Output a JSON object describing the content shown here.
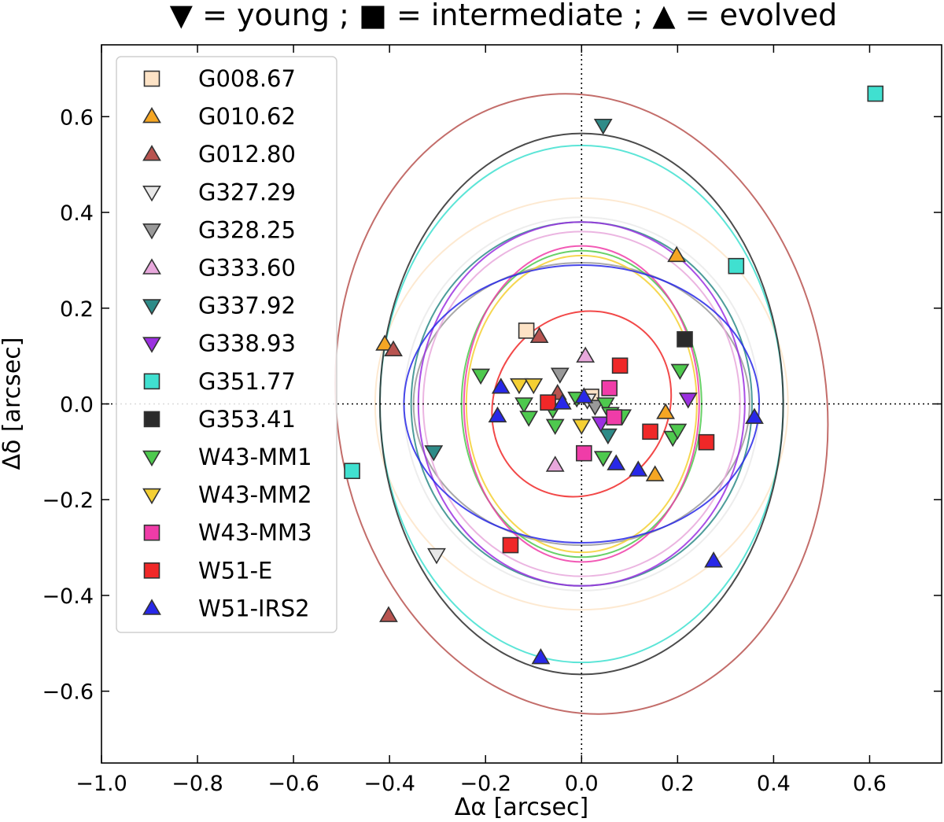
{
  "chart_data": {
    "type": "scatter",
    "title": "▼ = young ; ■ = intermediate ; ▲ = evolved",
    "xlabel": "Δα [arcsec]",
    "ylabel": "Δδ [arcsec]",
    "xlim": [
      -1.0,
      0.75
    ],
    "ylim": [
      -0.75,
      0.75
    ],
    "xticks": [
      -1.0,
      -0.8,
      -0.6,
      -0.4,
      -0.2,
      0.0,
      0.2,
      0.4,
      0.6
    ],
    "yticks": [
      -0.6,
      -0.4,
      -0.2,
      0.0,
      0.2,
      0.4,
      0.6
    ],
    "x_tick_labels": [
      "−1.0",
      "−0.8",
      "−0.6",
      "−0.4",
      "−0.2",
      "0.0",
      "0.2",
      "0.4",
      "0.6"
    ],
    "y_tick_labels": [
      "−0.6",
      "−0.4",
      "−0.2",
      "0.0",
      "0.2",
      "0.4",
      "0.6"
    ],
    "grid": false,
    "legend_position": "top-left",
    "series": [
      {
        "name": "G008.67",
        "marker": "square",
        "color": "#fde3c6",
        "points": [
          [
            -0.115,
            0.153
          ],
          [
            0.02,
            0.015
          ]
        ],
        "ellipse": {
          "a": 0.43,
          "b": 0.43,
          "angle": 0
        }
      },
      {
        "name": "G010.62",
        "marker": "triangle-up",
        "color": "#f5a623",
        "points": [
          [
            -0.41,
            0.125
          ],
          [
            0.198,
            0.31
          ],
          [
            0.175,
            -0.018
          ],
          [
            0.153,
            -0.148
          ]
        ],
        "ellipse": null
      },
      {
        "name": "G012.80",
        "marker": "triangle-up",
        "color": "#b85450",
        "points": [
          [
            -0.392,
            0.113
          ],
          [
            -0.088,
            0.141
          ],
          [
            -0.402,
            -0.442
          ],
          [
            -0.05,
            0.022
          ]
        ],
        "ellipse": {
          "a": 0.51,
          "b": 0.65,
          "angle": -8
        }
      },
      {
        "name": "G327.29",
        "marker": "triangle-down",
        "color": "#e8e8e8",
        "points": [
          [
            -0.302,
            -0.315
          ],
          [
            0.012,
            0.008
          ]
        ],
        "ellipse": {
          "a": 0.37,
          "b": 0.39,
          "angle": 0
        }
      },
      {
        "name": "G328.25",
        "marker": "triangle-down",
        "color": "#999999",
        "points": [
          [
            -0.045,
            0.062
          ],
          [
            0.028,
            -0.005
          ]
        ],
        "ellipse": {
          "a": 0.35,
          "b": 0.295,
          "angle": 0
        }
      },
      {
        "name": "G333.60",
        "marker": "triangle-up",
        "color": "#e8a8dc",
        "points": [
          [
            0.008,
            0.1
          ],
          [
            -0.055,
            -0.128
          ]
        ],
        "ellipse": {
          "a": 0.33,
          "b": 0.36,
          "angle": 0
        }
      },
      {
        "name": "G337.92",
        "marker": "triangle-down",
        "color": "#2e8b88",
        "points": [
          [
            0.045,
            0.582
          ],
          [
            -0.308,
            -0.1
          ],
          [
            0.055,
            -0.065
          ]
        ],
        "ellipse": {
          "a": 0.355,
          "b": 0.38,
          "angle": 0
        }
      },
      {
        "name": "G338.93",
        "marker": "triangle-down",
        "color": "#9b30e0",
        "points": [
          [
            0.222,
            0.01
          ],
          [
            0.04,
            -0.04
          ]
        ],
        "ellipse": {
          "a": 0.34,
          "b": 0.38,
          "angle": 0
        }
      },
      {
        "name": "G351.77",
        "marker": "square",
        "color": "#40e0d0",
        "points": [
          [
            0.612,
            0.648
          ],
          [
            0.322,
            0.288
          ],
          [
            -0.478,
            -0.14
          ]
        ],
        "ellipse": {
          "a": 0.42,
          "b": 0.54,
          "angle": 0
        }
      },
      {
        "name": "G353.41",
        "marker": "square",
        "color": "#2b2b2b",
        "points": [
          [
            0.215,
            0.135
          ]
        ],
        "ellipse": {
          "a": 0.42,
          "b": 0.565,
          "angle": 0
        }
      },
      {
        "name": "W43-MM1",
        "marker": "triangle-down",
        "color": "#4ec94e",
        "points": [
          [
            -0.21,
            0.06
          ],
          [
            -0.12,
            0.0
          ],
          [
            -0.11,
            -0.028
          ],
          [
            -0.06,
            -0.012
          ],
          [
            -0.055,
            -0.045
          ],
          [
            -0.01,
            0.012
          ],
          [
            0.05,
            0.0
          ],
          [
            0.06,
            -0.02
          ],
          [
            0.045,
            -0.112
          ],
          [
            0.085,
            -0.025
          ],
          [
            0.205,
            0.07
          ],
          [
            0.19,
            -0.07
          ],
          [
            0.2,
            -0.055
          ]
        ],
        "ellipse": {
          "a": 0.25,
          "b": 0.32,
          "angle": 0
        }
      },
      {
        "name": "W43-MM2",
        "marker": "triangle-down",
        "color": "#f5d033",
        "points": [
          [
            -0.13,
            0.04
          ],
          [
            -0.1,
            0.04
          ],
          [
            0.0,
            -0.045
          ]
        ],
        "ellipse": {
          "a": 0.24,
          "b": 0.31,
          "angle": 0
        }
      },
      {
        "name": "W43-MM3",
        "marker": "square",
        "color": "#f03ca8",
        "points": [
          [
            0.058,
            0.033
          ],
          [
            0.068,
            -0.028
          ],
          [
            0.005,
            -0.103
          ]
        ],
        "ellipse": {
          "a": 0.245,
          "b": 0.33,
          "angle": 0
        }
      },
      {
        "name": "W51-E",
        "marker": "square",
        "color": "#f02828",
        "points": [
          [
            -0.07,
            0.003
          ],
          [
            0.08,
            0.08
          ],
          [
            0.143,
            -0.058
          ],
          [
            0.26,
            -0.08
          ],
          [
            -0.148,
            -0.295
          ]
        ],
        "ellipse": {
          "a": 0.18,
          "b": 0.2,
          "angle": 35
        }
      },
      {
        "name": "W51-IRS2",
        "marker": "triangle-up",
        "color": "#2828e8",
        "points": [
          [
            -0.168,
            0.035
          ],
          [
            -0.175,
            -0.025
          ],
          [
            -0.04,
            0.002
          ],
          [
            0.005,
            0.015
          ],
          [
            0.072,
            -0.125
          ],
          [
            0.118,
            -0.138
          ],
          [
            0.36,
            -0.028
          ],
          [
            0.275,
            -0.328
          ],
          [
            -0.085,
            -0.53
          ]
        ],
        "ellipse": {
          "a": 0.37,
          "b": 0.29,
          "angle": 0
        }
      }
    ]
  }
}
